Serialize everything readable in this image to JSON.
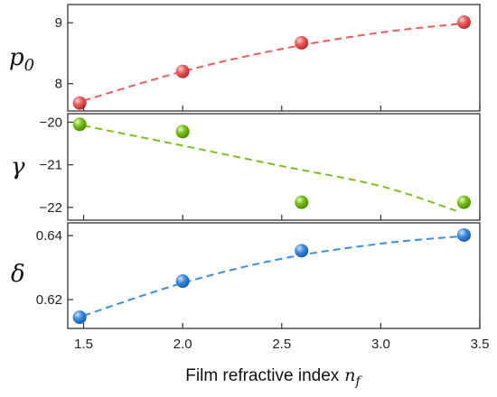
{
  "chart_data": {
    "type": "scatter",
    "x_axis": {
      "label": "Film refractive index",
      "label_var": "n",
      "label_var_sub": "f",
      "range": [
        1.42,
        3.5
      ],
      "ticks": [
        "1.5",
        "2.0",
        "2.5",
        "3.0",
        "3.5"
      ]
    },
    "panels": [
      {
        "name": "p0",
        "ylabel": "p",
        "ylabel_sub": "0",
        "ylim": [
          7.55,
          9.3
        ],
        "ticks": [
          "8",
          "9"
        ],
        "color": "#ef5b5b",
        "points": [
          {
            "x": 1.48,
            "y": 7.68
          },
          {
            "x": 2.0,
            "y": 8.2
          },
          {
            "x": 2.6,
            "y": 8.67
          },
          {
            "x": 3.42,
            "y": 9.01
          }
        ],
        "fit": [
          {
            "x": 1.5,
            "y": 7.72
          },
          {
            "x": 2.0,
            "y": 8.2
          },
          {
            "x": 2.5,
            "y": 8.57
          },
          {
            "x": 3.0,
            "y": 8.84
          },
          {
            "x": 3.45,
            "y": 9.0
          }
        ]
      },
      {
        "name": "gamma",
        "ylabel": "γ",
        "ylabel_sub": "",
        "ylim": [
          -22.3,
          -19.8
        ],
        "ticks": [
          "−20",
          "−21",
          "−22"
        ],
        "color": "#7ac21b",
        "points": [
          {
            "x": 1.48,
            "y": -20.05
          },
          {
            "x": 2.0,
            "y": -20.22
          },
          {
            "x": 2.6,
            "y": -21.88
          },
          {
            "x": 3.42,
            "y": -21.88
          }
        ],
        "fit": [
          {
            "x": 1.5,
            "y": -20.08
          },
          {
            "x": 2.0,
            "y": -20.55
          },
          {
            "x": 2.5,
            "y": -21.03
          },
          {
            "x": 3.0,
            "y": -21.5
          },
          {
            "x": 3.38,
            "y": -22.08
          }
        ]
      },
      {
        "name": "delta",
        "ylabel": "δ",
        "ylabel_sub": "",
        "ylim": [
          0.611,
          0.644
        ],
        "ticks": [
          "0.64",
          "0.62"
        ],
        "color": "#3b8de4",
        "points": [
          {
            "x": 1.48,
            "y": 0.6145
          },
          {
            "x": 2.0,
            "y": 0.6258
          },
          {
            "x": 2.6,
            "y": 0.6353
          },
          {
            "x": 3.42,
            "y": 0.6402
          }
        ],
        "fit": [
          {
            "x": 1.5,
            "y": 0.615
          },
          {
            "x": 2.0,
            "y": 0.6252
          },
          {
            "x": 2.5,
            "y": 0.6328
          },
          {
            "x": 3.0,
            "y": 0.6375
          },
          {
            "x": 3.42,
            "y": 0.6399
          }
        ]
      }
    ]
  }
}
